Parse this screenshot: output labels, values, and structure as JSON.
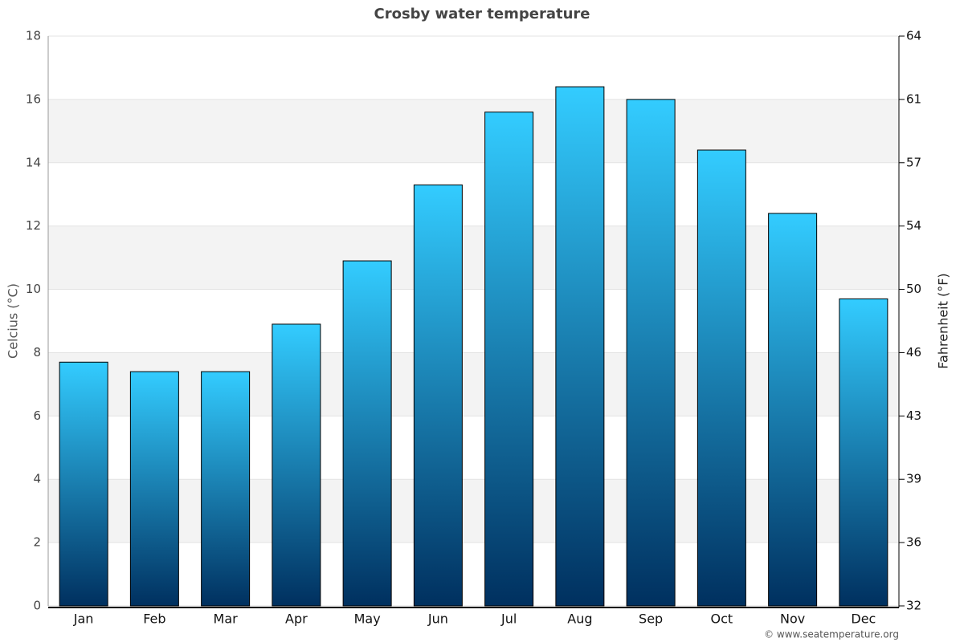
{
  "chart_data": {
    "type": "bar",
    "title": "Crosby water temperature",
    "y_label": "Celcius (°C)",
    "y2_label": "Fahrenheit (°F)",
    "source": "© www.seatemperature.org",
    "categories": [
      "Jan",
      "Feb",
      "Mar",
      "Apr",
      "May",
      "Jun",
      "Jul",
      "Aug",
      "Sep",
      "Oct",
      "Nov",
      "Dec"
    ],
    "values": [
      7.7,
      7.4,
      7.4,
      8.9,
      10.9,
      13.3,
      15.6,
      16.4,
      16.0,
      14.4,
      12.4,
      9.7
    ],
    "gradient": [
      "#33ccff",
      "#00305f"
    ],
    "ylim": [
      0,
      18
    ],
    "yticks": [
      0,
      2,
      4,
      6,
      8,
      10,
      12,
      14,
      16,
      18
    ],
    "y2lim": [
      32,
      64.4
    ],
    "y2ticks": [
      32,
      {
        "value": 35.6,
        "label": "36"
      },
      {
        "value": 39.2,
        "label": "39"
      },
      {
        "value": 42.8,
        "label": "43"
      },
      {
        "value": 46.4,
        "label": "46"
      },
      50,
      {
        "value": 53.6,
        "label": "54"
      },
      {
        "value": 57.2,
        "label": "57"
      },
      {
        "value": 60.8,
        "label": "61"
      },
      {
        "value": 64.4,
        "label": "64"
      }
    ],
    "grid": true
  }
}
